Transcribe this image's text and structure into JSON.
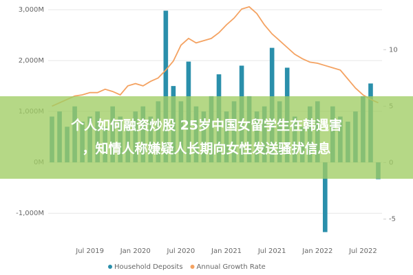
{
  "chart_data": {
    "type": "bar_line",
    "categories": [
      null,
      null,
      null,
      null,
      null,
      "Jul 2019",
      null,
      null,
      null,
      null,
      null,
      "Jan 2020",
      null,
      null,
      null,
      null,
      null,
      "Jul 2020",
      null,
      null,
      null,
      null,
      null,
      "Jan 2021",
      null,
      null,
      null,
      null,
      null,
      "Jul 2021",
      null,
      null,
      null,
      null,
      null,
      "Jan 2022",
      null,
      null,
      null,
      null,
      null,
      "Jul 2022",
      null,
      null
    ],
    "series": [
      {
        "name": "Household Deposits",
        "color": "#2a8fab",
        "type": "bar",
        "values": [
          900,
          1000,
          700,
          1100,
          800,
          900,
          1000,
          700,
          1100,
          900,
          800,
          1000,
          1100,
          900,
          1200,
          2980,
          1500,
          1200,
          1980,
          1100,
          1000,
          1300,
          1730,
          1000,
          1200,
          1900,
          1300,
          1000,
          1100,
          2250,
          1200,
          1860,
          900,
          700,
          1100,
          1200,
          -1370,
          1100,
          900,
          800,
          1000,
          1300,
          1550,
          -330
        ]
      },
      {
        "name": "Annual Growth Rate",
        "color": "#f4a261",
        "type": "line",
        "axis": "y2",
        "values": [
          5.0,
          5.3,
          5.6,
          5.9,
          6.0,
          6.2,
          6.2,
          6.5,
          6.3,
          6.0,
          6.8,
          7.0,
          6.8,
          7.2,
          7.5,
          8.2,
          9.0,
          10.4,
          11.0,
          10.6,
          10.8,
          11.0,
          11.5,
          12.2,
          12.8,
          13.6,
          13.8,
          13.2,
          12.2,
          11.4,
          10.8,
          10.2,
          9.6,
          9.2,
          8.9,
          8.8,
          8.6,
          8.4,
          8.2,
          7.4,
          6.6,
          6.0,
          5.6,
          5.3
        ]
      }
    ],
    "ylim": [
      -1470,
      3190
    ],
    "yticks": [
      {
        "value": -1000,
        "label": "-1,000M"
      },
      {
        "value": 0,
        "label": "0M"
      },
      {
        "value": 1000,
        "label": "1,000M"
      },
      {
        "value": 2000,
        "label": "2,000M"
      },
      {
        "value": 3000,
        "label": "3,000M"
      }
    ],
    "y2lim": [
      -6.6,
      14.4
    ],
    "y2ticks": [
      -5,
      0,
      5,
      10
    ],
    "grid": true
  },
  "banner": {
    "lines": [
      "个人如何融资炒股 25岁中国女留学生在韩遇害",
      "，知情人称嫌疑人长期向女性发送骚扰信息"
    ]
  }
}
